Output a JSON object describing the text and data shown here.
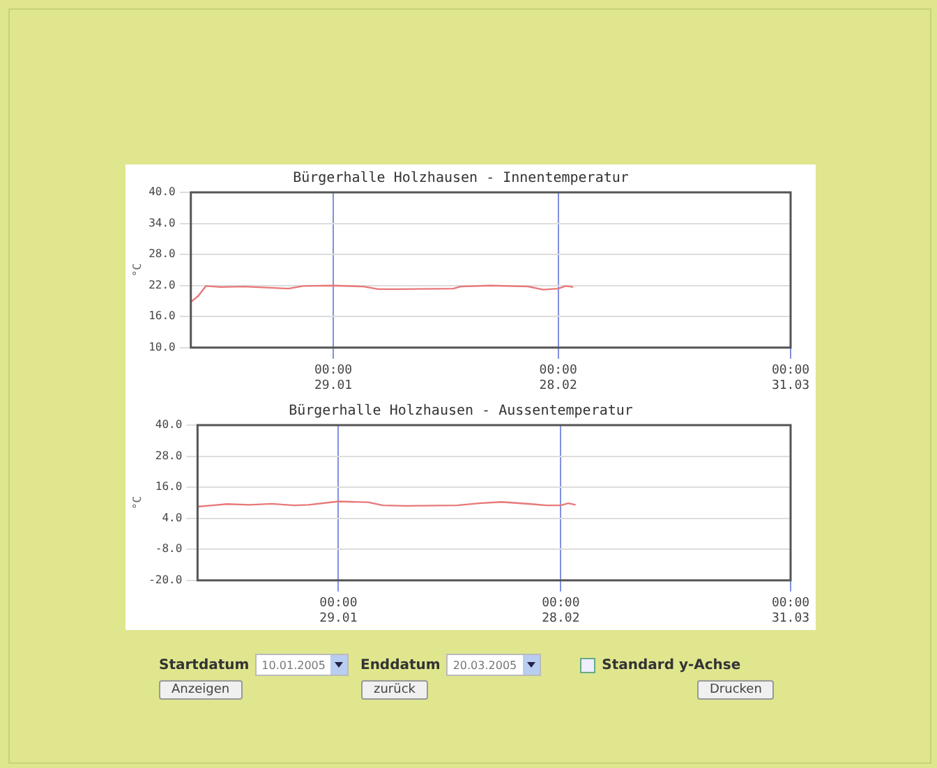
{
  "chart_data": [
    {
      "type": "line",
      "title": "Bürgerhalle Holzhausen - Innentemperatur",
      "ylabel": "°C",
      "x": [
        "--01-10",
        "--01-11",
        "--01-12",
        "--01-14",
        "--01-17",
        "--01-20",
        "--01-23",
        "--01-25",
        "--01-29",
        "--02-02",
        "--02-04",
        "--02-07",
        "--02-14",
        "--02-15",
        "--02-19",
        "--02-24",
        "--02-26",
        "--02-28",
        "--03-01",
        "--03-02"
      ],
      "series": [
        {
          "color": "#e87878",
          "values": [
            18.8,
            20,
            21.9,
            21.7,
            21.8,
            21.6,
            21.4,
            21.9,
            22.0,
            21.8,
            21.3,
            21.3,
            21.4,
            21.8,
            22.0,
            21.8,
            21.2,
            21.4,
            21.9,
            21.7
          ]
        }
      ],
      "xlim": [
        "--01-10",
        "--03-31"
      ],
      "xticks": [
        {
          "value": "--01-29",
          "label": "00:00\n29.01"
        },
        {
          "value": "--02-28",
          "label": "00:00\n28.02"
        },
        {
          "value": "--03-31",
          "label": "00:00\n31.03"
        }
      ],
      "ylim": [
        10,
        40
      ],
      "yticks": [
        {
          "value": 10,
          "label": "10.0"
        },
        {
          "value": 16,
          "label": "16.0"
        },
        {
          "value": 22,
          "label": "22.0"
        },
        {
          "value": 28,
          "label": "28.0"
        },
        {
          "value": 34,
          "label": "34.0"
        },
        {
          "value": 40,
          "label": "40.0"
        }
      ],
      "grid": true,
      "marker": "none"
    },
    {
      "type": "line",
      "title": "Bürgerhalle Holzhausen - Aussentemperatur",
      "ylabel": "°C",
      "x": [
        "--01-10",
        "--01-12",
        "--01-14",
        "--01-17",
        "--01-20",
        "--01-23",
        "--01-25",
        "--01-29",
        "--02-02",
        "--02-04",
        "--02-07",
        "--02-14",
        "--02-17",
        "--02-20",
        "--02-24",
        "--02-26",
        "--02-28",
        "--03-01",
        "--03-02"
      ],
      "series": [
        {
          "color": "#e87878",
          "values": [
            8.5,
            9.0,
            9.5,
            9.2,
            9.6,
            9.0,
            9.2,
            10.5,
            10.2,
            9.0,
            8.8,
            9.0,
            9.8,
            10.3,
            9.5,
            9.0,
            9.0,
            9.8,
            9.2
          ]
        }
      ],
      "xlim": [
        "--01-10",
        "--03-31"
      ],
      "xticks": [
        {
          "value": "--01-29",
          "label": "00:00\n29.01"
        },
        {
          "value": "--02-28",
          "label": "00:00\n28.02"
        },
        {
          "value": "--03-31",
          "label": "00:00\n31.03"
        }
      ],
      "ylim": [
        -20,
        40
      ],
      "yticks": [
        {
          "value": -20,
          "label": "-20.0"
        },
        {
          "value": -8,
          "label": "-8.0"
        },
        {
          "value": 4,
          "label": "4.0"
        },
        {
          "value": 16,
          "label": "16.0"
        },
        {
          "value": 28,
          "label": "28.0"
        },
        {
          "value": 40,
          "label": "40.0"
        }
      ],
      "grid": true,
      "marker": "none"
    },
    {
      "type": "other",
      "annotations": [
        "Startdatum",
        "10.01.2005",
        "Enddatum",
        "20.03.2005",
        "Standard y-Achse",
        "Anzeigen",
        "zurück",
        "Drucken"
      ]
    }
  ]
}
